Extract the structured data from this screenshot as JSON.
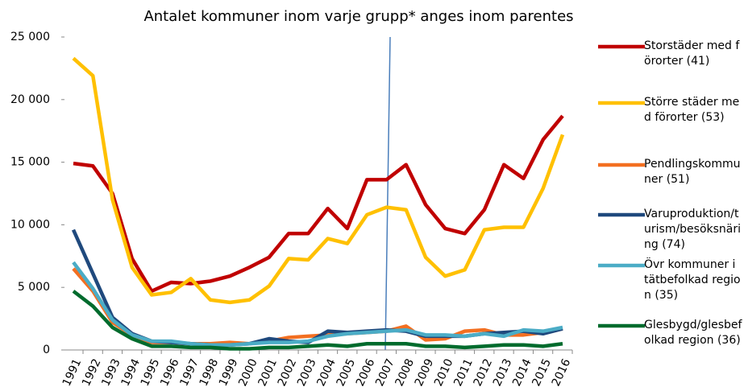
{
  "chart_data": {
    "type": "line",
    "title": "Antalet kommuner inom varje grupp* anges inom parentes",
    "categories": [
      "1991",
      "1992",
      "1993",
      "1994",
      "1995",
      "1996",
      "1997",
      "1998",
      "1999",
      "2000",
      "2001",
      "2002",
      "2003",
      "2004",
      "2005",
      "2006",
      "2007",
      "2008",
      "2009",
      "2010",
      "2011",
      "2012",
      "2013",
      "2014",
      "2015",
      "2016"
    ],
    "series": [
      {
        "name": "Storstäder med förorter (41)",
        "color": "#c00000",
        "values": [
          14900,
          14700,
          12500,
          7300,
          4700,
          5400,
          5300,
          5500,
          5900,
          6600,
          7400,
          9300,
          9300,
          11300,
          9700,
          13600,
          13600,
          14800,
          11600,
          9700,
          9300,
          11200,
          14800,
          13700,
          16800,
          18700
        ]
      },
      {
        "name": "Större städer med förorter (53)",
        "color": "#ffc000",
        "values": [
          23300,
          21900,
          12000,
          6600,
          4400,
          4600,
          5700,
          4000,
          3800,
          4000,
          5100,
          7300,
          7200,
          8900,
          8500,
          10800,
          11400,
          11200,
          7400,
          5900,
          6400,
          9600,
          9800,
          9800,
          12900,
          17200
        ]
      },
      {
        "name": "Pendlingskommuner (51)",
        "color": "#f36f21",
        "values": [
          6500,
          4700,
          2200,
          1200,
          600,
          600,
          500,
          500,
          600,
          500,
          700,
          1000,
          1100,
          1200,
          1300,
          1400,
          1500,
          1900,
          800,
          900,
          1500,
          1600,
          1200,
          1200,
          1400,
          1700
        ]
      },
      {
        "name": "Varuproduktion/turism/besöksnäring (74)",
        "color": "#1f497d",
        "values": [
          9600,
          6100,
          2600,
          1300,
          700,
          600,
          500,
          400,
          400,
          500,
          900,
          700,
          600,
          1500,
          1400,
          1500,
          1600,
          1500,
          1100,
          1100,
          1100,
          1300,
          1400,
          1500,
          1300,
          1700
        ]
      },
      {
        "name": "Övr kommuner i tätbefolkad region (35)",
        "color": "#4bacc6",
        "values": [
          7000,
          4900,
          2400,
          1200,
          700,
          700,
          500,
          400,
          400,
          500,
          600,
          600,
          700,
          1100,
          1300,
          1400,
          1500,
          1600,
          1200,
          1200,
          1100,
          1300,
          1100,
          1600,
          1500,
          1800
        ]
      },
      {
        "name": "Glesbygd/glesbefolkad region (36)",
        "color": "#006b2d",
        "values": [
          4700,
          3500,
          1800,
          900,
          300,
          300,
          200,
          200,
          100,
          100,
          200,
          200,
          300,
          400,
          300,
          500,
          500,
          500,
          300,
          300,
          200,
          300,
          400,
          400,
          300,
          500
        ]
      }
    ],
    "ylim": [
      0,
      25000
    ],
    "yticks": [
      0,
      {
        "value": 5000,
        "label": "5 000"
      },
      {
        "value": 10000,
        "label": "10 000"
      },
      {
        "value": 15000,
        "label": "15 000"
      },
      {
        "value": 20000,
        "label": "20 000"
      },
      {
        "value": 25000,
        "label": "25 000"
      }
    ],
    "grid": false
  }
}
